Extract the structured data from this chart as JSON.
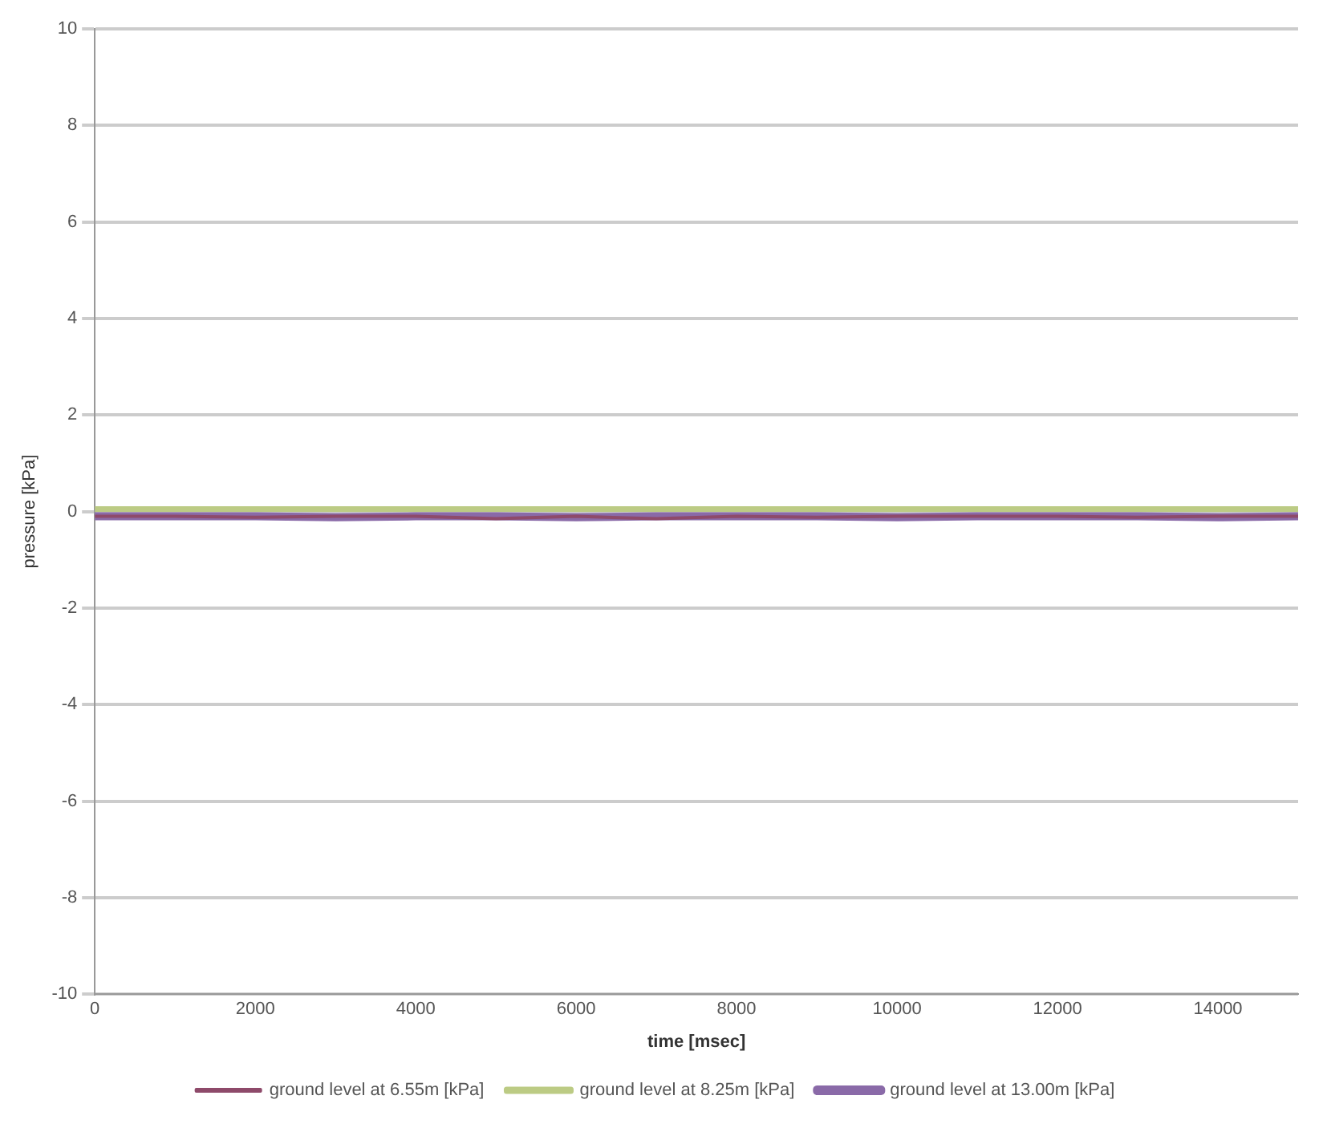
{
  "chart_data": {
    "type": "line",
    "xlabel": "time [msec]",
    "ylabel": "pressure [kPa]",
    "x": [
      0,
      1000,
      2000,
      3000,
      4000,
      5000,
      6000,
      7000,
      8000,
      9000,
      10000,
      11000,
      12000,
      13000,
      14000,
      15000
    ],
    "series": [
      {
        "name": "ground level at 6.55m [kPa]",
        "color": "#8e4a6a",
        "values": [
          -0.1,
          -0.1,
          -0.12,
          -0.1,
          -0.1,
          -0.15,
          -0.1,
          -0.15,
          -0.1,
          -0.12,
          -0.1,
          -0.1,
          -0.1,
          -0.12,
          -0.1,
          -0.1
        ]
      },
      {
        "name": "ground level at 8.25m [kPa]",
        "color": "#bccb84",
        "values": [
          0.05,
          0.05,
          0.05,
          0.05,
          0.05,
          0.05,
          0.05,
          0.05,
          0.05,
          0.05,
          0.05,
          0.05,
          0.05,
          0.05,
          0.05,
          0.05
        ]
      },
      {
        "name": "ground level at 13.00m [kPa]",
        "color": "#8a6aa8",
        "values": [
          -0.1,
          -0.1,
          -0.1,
          -0.12,
          -0.1,
          -0.1,
          -0.12,
          -0.1,
          -0.1,
          -0.1,
          -0.12,
          -0.1,
          -0.1,
          -0.1,
          -0.12,
          -0.1
        ]
      }
    ],
    "xlim": [
      0,
      15000
    ],
    "xticks": [
      0,
      2000,
      4000,
      6000,
      8000,
      10000,
      12000,
      14000
    ],
    "ylim": [
      -10,
      10
    ],
    "yticks": [
      -10,
      -8,
      -6,
      -4,
      -2,
      0,
      2,
      4,
      6,
      8,
      10
    ],
    "grid": "y",
    "legend": "bottom",
    "marker": "none",
    "line_style": "solid"
  }
}
